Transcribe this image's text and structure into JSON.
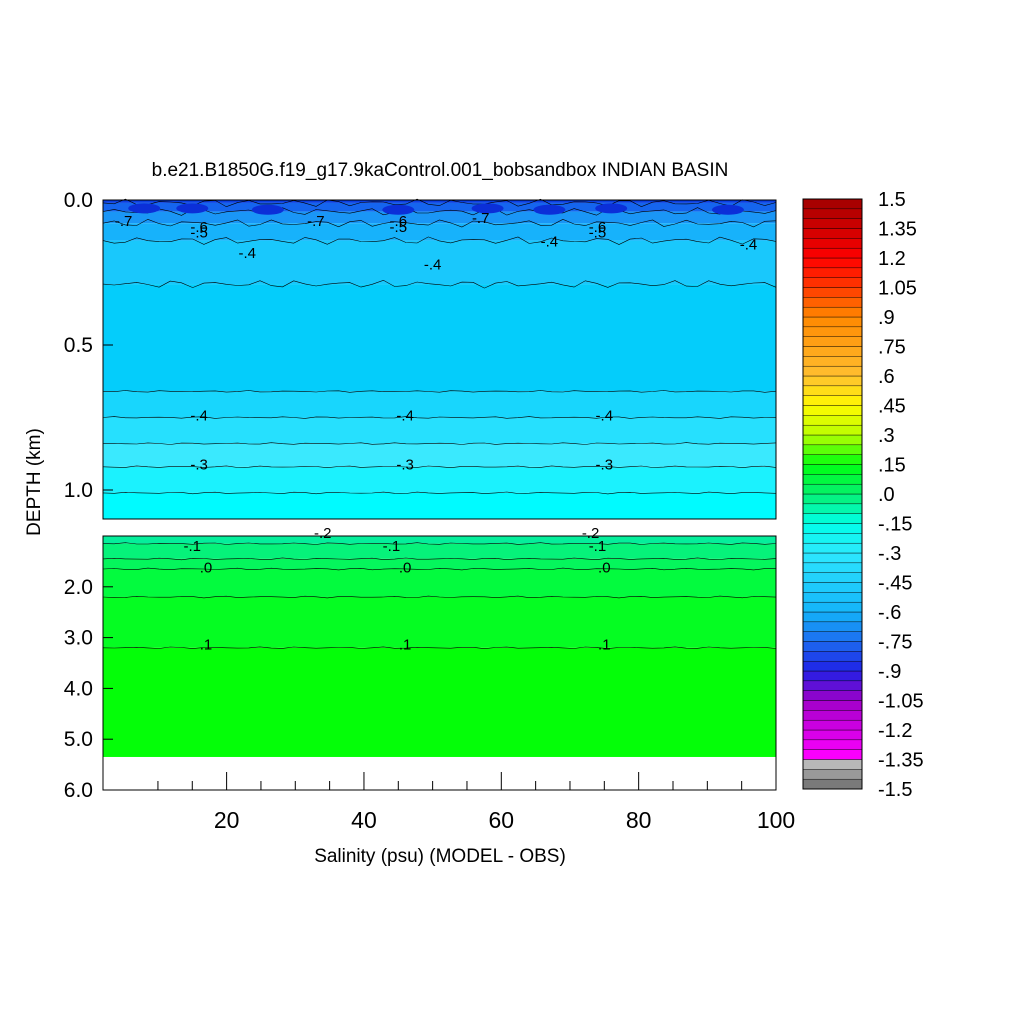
{
  "chart_data": {
    "type": "heatmap",
    "title": "b.e21.B1850G.f19_g17.9kaControl.001_bobsandbox INDIAN BASIN",
    "xlabel": "Salinity (psu) (MODEL - OBS)",
    "ylabel": "DEPTH (km)",
    "xlim": [
      2,
      100
    ],
    "x_ticks": [
      "20",
      "40",
      "60",
      "80",
      "100"
    ],
    "x_tick_values": [
      20,
      40,
      60,
      80,
      100
    ],
    "upper_panel": {
      "ylim": [
        0.0,
        1.1
      ],
      "y_ticks": [
        "0.0",
        "0.5",
        "1.0"
      ],
      "y_tick_values": [
        0.0,
        0.5,
        1.0
      ],
      "layers": [
        {
          "top": 0.0,
          "bottom": 0.01,
          "color": "#0a3ee0",
          "level": "-.8"
        },
        {
          "top": 0.01,
          "bottom": 0.04,
          "color": "#1565ee",
          "level": "-.7"
        },
        {
          "top": 0.04,
          "bottom": 0.08,
          "color": "#1a96f6",
          "level": "-.6"
        },
        {
          "top": 0.08,
          "bottom": 0.14,
          "color": "#17b2fb",
          "level": "-.5"
        },
        {
          "top": 0.14,
          "bottom": 0.29,
          "color": "#19c8fc",
          "level": "-.45"
        },
        {
          "top": 0.29,
          "bottom": 0.66,
          "color": "#04cdfb",
          "level": "-.4"
        },
        {
          "top": 0.66,
          "bottom": 0.75,
          "color": "#18d6fd",
          "level": "-.4"
        },
        {
          "top": 0.75,
          "bottom": 0.84,
          "color": "#26e0fe",
          "level": "-.35"
        },
        {
          "top": 0.84,
          "bottom": 0.92,
          "color": "#3ae9fe",
          "level": "-.3"
        },
        {
          "top": 0.92,
          "bottom": 1.01,
          "color": "#1bf2fe",
          "level": "-.3"
        },
        {
          "top": 1.01,
          "bottom": 1.1,
          "color": "#00fbff",
          "level": "-.25"
        }
      ],
      "contour_labels": [
        {
          "x": 5,
          "y": 0.09,
          "text": "-.7"
        },
        {
          "x": 16,
          "y": 0.11,
          "text": "-.6"
        },
        {
          "x": 16,
          "y": 0.13,
          "text": "-.5"
        },
        {
          "x": 23,
          "y": 0.2,
          "text": "-.4"
        },
        {
          "x": 33,
          "y": 0.09,
          "text": "-.7"
        },
        {
          "x": 45,
          "y": 0.09,
          "text": "-.6"
        },
        {
          "x": 45,
          "y": 0.11,
          "text": "-.5"
        },
        {
          "x": 50,
          "y": 0.24,
          "text": "-.4"
        },
        {
          "x": 57,
          "y": 0.08,
          "text": "-.7"
        },
        {
          "x": 67,
          "y": 0.16,
          "text": "-.4"
        },
        {
          "x": 74,
          "y": 0.11,
          "text": "-.6"
        },
        {
          "x": 74,
          "y": 0.13,
          "text": "-.5"
        },
        {
          "x": 96,
          "y": 0.17,
          "text": "-.4"
        },
        {
          "x": 16,
          "y": 0.76,
          "text": "-.4"
        },
        {
          "x": 46,
          "y": 0.76,
          "text": "-.4"
        },
        {
          "x": 75,
          "y": 0.76,
          "text": "-.4"
        },
        {
          "x": 16,
          "y": 0.93,
          "text": "-.3"
        },
        {
          "x": 46,
          "y": 0.93,
          "text": "-.3"
        },
        {
          "x": 75,
          "y": 0.93,
          "text": "-.3"
        }
      ]
    },
    "lower_panel": {
      "ylim": [
        1.0,
        6.0
      ],
      "y_ticks": [
        "2.0",
        "3.0",
        "4.0",
        "5.0",
        "6.0"
      ],
      "y_tick_values": [
        2.0,
        3.0,
        4.0,
        5.0,
        6.0
      ],
      "data_bottom": 5.35,
      "layers": [
        {
          "top": 1.0,
          "bottom": 1.15,
          "color": "#05ee9b",
          "level": "-.15"
        },
        {
          "top": 1.15,
          "bottom": 1.45,
          "color": "#06f27a",
          "level": "-.1"
        },
        {
          "top": 1.45,
          "bottom": 1.65,
          "color": "#05f65c",
          "level": "-.05"
        },
        {
          "top": 1.65,
          "bottom": 2.2,
          "color": "#03fb3e",
          "level": ".0"
        },
        {
          "top": 2.2,
          "bottom": 3.2,
          "color": "#05fd22",
          "level": ".05"
        },
        {
          "top": 3.2,
          "bottom": 5.35,
          "color": "#04fe08",
          "level": ".1"
        }
      ],
      "contour_labels": [
        {
          "x": 34,
          "y": 1.04,
          "text": "-.2"
        },
        {
          "x": 73,
          "y": 1.04,
          "text": "-.2"
        },
        {
          "x": 15,
          "y": 1.3,
          "text": "-.1"
        },
        {
          "x": 44,
          "y": 1.3,
          "text": "-.1"
        },
        {
          "x": 74,
          "y": 1.3,
          "text": "-.1"
        },
        {
          "x": 17,
          "y": 1.72,
          "text": ".0"
        },
        {
          "x": 46,
          "y": 1.72,
          "text": ".0"
        },
        {
          "x": 75,
          "y": 1.72,
          "text": ".0"
        },
        {
          "x": 17,
          "y": 3.23,
          "text": ".1"
        },
        {
          "x": 46,
          "y": 3.23,
          "text": ".1"
        },
        {
          "x": 75,
          "y": 3.23,
          "text": ".1"
        }
      ]
    },
    "colorbar": {
      "range": [
        -1.5,
        1.5
      ],
      "step": 0.05,
      "labels": [
        "1.5",
        "1.35",
        "1.2",
        "1.05",
        ".9",
        ".75",
        ".6",
        ".45",
        ".3",
        ".15",
        ".0",
        "-.15",
        "-.3",
        "-.45",
        "-.6",
        "-.75",
        "-.9",
        "-1.05",
        "-1.2",
        "-1.35",
        "-1.5"
      ],
      "label_values": [
        1.5,
        1.35,
        1.2,
        1.05,
        0.9,
        0.75,
        0.6,
        0.45,
        0.3,
        0.15,
        0.0,
        -0.15,
        -0.3,
        -0.45,
        -0.6,
        -0.75,
        -0.9,
        -1.05,
        -1.2,
        -1.35,
        -1.5
      ]
    }
  }
}
